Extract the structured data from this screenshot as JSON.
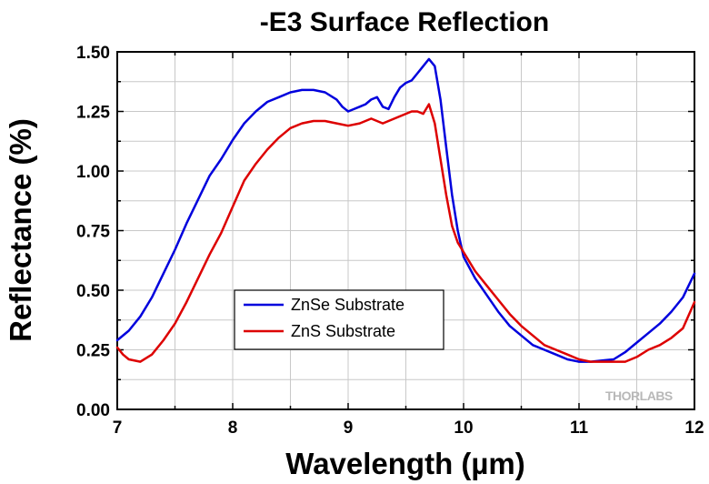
{
  "chart_data": {
    "type": "line",
    "title": "-E3 Surface Reflection",
    "xlabel": "Wavelength (µm)",
    "ylabel": "Reflectance (%)",
    "xlim": [
      7,
      12
    ],
    "ylim": [
      0,
      1.5
    ],
    "x_ticks": [
      "7",
      "8",
      "9",
      "10",
      "11",
      "12"
    ],
    "y_ticks": [
      "0.00",
      "0.25",
      "0.50",
      "0.75",
      "1.00",
      "1.25",
      "1.50"
    ],
    "grid": true,
    "legend_position": "center-left",
    "watermark": "THORLABS",
    "series": [
      {
        "name": "ZnSe Substrate",
        "color": "#0000dd",
        "x": [
          7.0,
          7.1,
          7.2,
          7.3,
          7.4,
          7.5,
          7.6,
          7.7,
          7.8,
          7.9,
          8.0,
          8.1,
          8.2,
          8.3,
          8.4,
          8.5,
          8.6,
          8.7,
          8.8,
          8.9,
          8.95,
          9.0,
          9.05,
          9.1,
          9.15,
          9.2,
          9.25,
          9.3,
          9.35,
          9.4,
          9.45,
          9.5,
          9.55,
          9.6,
          9.65,
          9.7,
          9.75,
          9.8,
          9.85,
          9.9,
          9.95,
          10.0,
          10.1,
          10.2,
          10.3,
          10.4,
          10.5,
          10.6,
          10.7,
          10.8,
          10.9,
          11.0,
          11.1,
          11.2,
          11.3,
          11.4,
          11.5,
          11.6,
          11.7,
          11.8,
          11.9,
          12.0
        ],
        "y": [
          0.29,
          0.33,
          0.39,
          0.47,
          0.57,
          0.67,
          0.78,
          0.88,
          0.98,
          1.05,
          1.13,
          1.2,
          1.25,
          1.29,
          1.31,
          1.33,
          1.34,
          1.34,
          1.33,
          1.3,
          1.27,
          1.25,
          1.26,
          1.27,
          1.28,
          1.3,
          1.31,
          1.27,
          1.26,
          1.31,
          1.35,
          1.37,
          1.38,
          1.41,
          1.44,
          1.47,
          1.44,
          1.3,
          1.1,
          0.9,
          0.75,
          0.64,
          0.55,
          0.48,
          0.41,
          0.35,
          0.31,
          0.27,
          0.25,
          0.23,
          0.21,
          0.2,
          0.2,
          0.205,
          0.21,
          0.24,
          0.28,
          0.32,
          0.36,
          0.41,
          0.47,
          0.57
        ]
      },
      {
        "name": "ZnS Substrate",
        "color": "#dd0000",
        "x": [
          7.0,
          7.05,
          7.1,
          7.2,
          7.3,
          7.4,
          7.5,
          7.6,
          7.7,
          7.8,
          7.9,
          8.0,
          8.1,
          8.2,
          8.3,
          8.4,
          8.5,
          8.6,
          8.7,
          8.8,
          8.9,
          9.0,
          9.1,
          9.2,
          9.3,
          9.4,
          9.5,
          9.55,
          9.6,
          9.65,
          9.7,
          9.75,
          9.8,
          9.85,
          9.9,
          9.95,
          10.0,
          10.1,
          10.2,
          10.3,
          10.4,
          10.5,
          10.6,
          10.7,
          10.8,
          10.9,
          11.0,
          11.1,
          11.2,
          11.3,
          11.4,
          11.5,
          11.6,
          11.7,
          11.8,
          11.9,
          12.0
        ],
        "y": [
          0.26,
          0.23,
          0.21,
          0.2,
          0.23,
          0.29,
          0.36,
          0.45,
          0.55,
          0.65,
          0.74,
          0.85,
          0.96,
          1.03,
          1.09,
          1.14,
          1.18,
          1.2,
          1.21,
          1.21,
          1.2,
          1.19,
          1.2,
          1.22,
          1.2,
          1.22,
          1.24,
          1.25,
          1.25,
          1.24,
          1.28,
          1.2,
          1.05,
          0.9,
          0.77,
          0.7,
          0.66,
          0.58,
          0.52,
          0.46,
          0.4,
          0.35,
          0.31,
          0.27,
          0.25,
          0.23,
          0.21,
          0.2,
          0.2,
          0.2,
          0.2,
          0.22,
          0.25,
          0.27,
          0.3,
          0.34,
          0.45
        ]
      }
    ]
  }
}
